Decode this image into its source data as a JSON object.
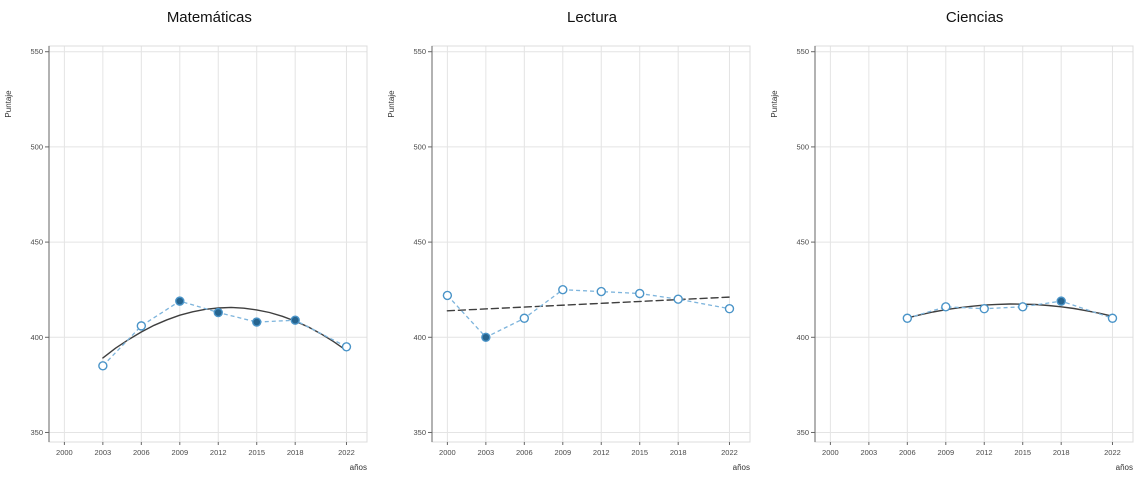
{
  "palette": {
    "series_line": "#7db4dc",
    "marker_stroke": "#4a94c8",
    "marker_open_fill": "#ffffff",
    "marker_filled": "#26648f",
    "trend_line": "#3f3f3f",
    "grid": "#e4e4e4",
    "box": "#dcdcdc",
    "spine": "#666666"
  },
  "chart_data": [
    {
      "type": "line",
      "title": "Matemáticas",
      "ylabel": "Puntaje",
      "xlabel": "años",
      "xlim": [
        1998.8,
        2023.6
      ],
      "ylim": [
        345,
        553
      ],
      "xticks": [
        2000,
        2003,
        2006,
        2009,
        2012,
        2015,
        2018,
        2022
      ],
      "yticks": [
        350,
        400,
        450,
        500,
        550
      ],
      "points": {
        "x": [
          2003,
          2006,
          2009,
          2012,
          2015,
          2018,
          2022
        ],
        "y": [
          385,
          406,
          419,
          413,
          408,
          409,
          395
        ],
        "filled": [
          false,
          false,
          true,
          true,
          true,
          true,
          false
        ]
      },
      "trend": {
        "dashed": false,
        "x": [
          2003,
          2004,
          2005,
          2006,
          2007,
          2008,
          2009,
          2010,
          2011,
          2012,
          2013,
          2014,
          2015,
          2016,
          2017,
          2018,
          2019,
          2020,
          2021,
          2022
        ],
        "y": [
          389.2,
          394.3,
          398.8,
          402.8,
          406.3,
          409.2,
          411.6,
          413.4,
          414.7,
          415.4,
          415.7,
          415.3,
          414.4,
          413.0,
          411.0,
          408.5,
          405.5,
          401.9,
          397.7,
          393.0
        ]
      }
    },
    {
      "type": "line",
      "title": "Lectura",
      "ylabel": "Puntaje",
      "xlabel": "años",
      "xlim": [
        1998.8,
        2023.6
      ],
      "ylim": [
        345,
        553
      ],
      "xticks": [
        2000,
        2003,
        2006,
        2009,
        2012,
        2015,
        2018,
        2022
      ],
      "yticks": [
        350,
        400,
        450,
        500,
        550
      ],
      "points": {
        "x": [
          2000,
          2003,
          2006,
          2009,
          2012,
          2015,
          2018,
          2022
        ],
        "y": [
          422,
          400,
          410,
          425,
          424,
          423,
          420,
          415
        ],
        "filled": [
          false,
          true,
          false,
          false,
          false,
          false,
          false,
          false
        ]
      },
      "trend": {
        "dashed": true,
        "x": [
          2000,
          2022
        ],
        "y": [
          413.9,
          421.1
        ]
      }
    },
    {
      "type": "line",
      "title": "Ciencias",
      "ylabel": "Puntaje",
      "xlabel": "años",
      "xlim": [
        1998.8,
        2023.6
      ],
      "ylim": [
        345,
        553
      ],
      "xticks": [
        2000,
        2003,
        2006,
        2009,
        2012,
        2015,
        2018,
        2022
      ],
      "yticks": [
        350,
        400,
        450,
        500,
        550
      ],
      "points": {
        "x": [
          2006,
          2009,
          2012,
          2015,
          2018,
          2022
        ],
        "y": [
          410,
          416,
          415,
          416,
          419,
          410
        ],
        "filled": [
          false,
          false,
          false,
          false,
          true,
          false
        ]
      },
      "trend": {
        "dashed": false,
        "x": [
          2006,
          2007,
          2008,
          2009,
          2010,
          2011,
          2012,
          2013,
          2014,
          2015,
          2016,
          2017,
          2018,
          2019,
          2020,
          2021,
          2022
        ],
        "y": [
          410.2,
          411.8,
          413.3,
          414.5,
          415.5,
          416.3,
          416.9,
          417.3,
          417.5,
          417.4,
          417.2,
          416.7,
          416.0,
          415.1,
          413.9,
          412.6,
          411.1
        ]
      }
    }
  ]
}
